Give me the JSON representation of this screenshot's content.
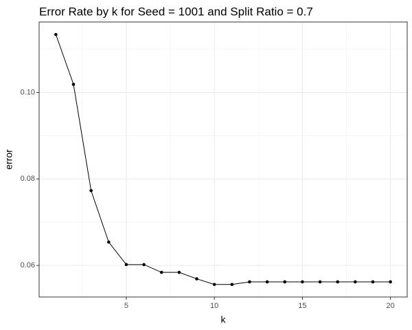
{
  "chart_data": {
    "type": "line",
    "title": "Error Rate by k for Seed = 1001 and Split Ratio = 0.7",
    "x_label": "k",
    "y_label": "error",
    "x": [
      1,
      2,
      3,
      4,
      5,
      6,
      7,
      8,
      9,
      10,
      11,
      12,
      13,
      14,
      15,
      16,
      17,
      18,
      19,
      20
    ],
    "series": [
      {
        "name": "error",
        "color": "#000000",
        "values": [
          0.1134,
          0.1019,
          0.0773,
          0.0654,
          0.0602,
          0.0602,
          0.0584,
          0.0584,
          0.0569,
          0.0556,
          0.0556,
          0.0562,
          0.0562,
          0.0562,
          0.0562,
          0.0562,
          0.0562,
          0.0562,
          0.0562,
          0.0562
        ]
      }
    ],
    "xlim": [
      0.05,
      20.95
    ],
    "xticks": [
      5,
      10,
      15,
      20
    ],
    "ylim": [
      0.0527,
      0.1163
    ],
    "yticks": [
      {
        "value": 0.06,
        "label": "0.06"
      },
      {
        "value": 0.08,
        "label": "0.08"
      },
      {
        "value": 0.1,
        "label": "0.10"
      }
    ],
    "grid": true,
    "minor_grid": true,
    "markers": true
  }
}
